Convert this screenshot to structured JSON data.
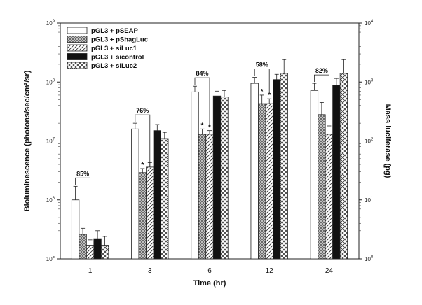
{
  "chart_data": {
    "type": "bar",
    "title": "",
    "xlabel": "Time (hr)",
    "ylabel": "Bioluminescence (photons/sec/cm²/sr)",
    "ylabel_right": "Mass luciferase (pg)",
    "yscale": "log",
    "ylim": [
      100000,
      1000000000
    ],
    "ylim_right": [
      1,
      10000
    ],
    "y_ticks": [
      {
        "value": 100000,
        "base": "10",
        "exp": "5"
      },
      {
        "value": 1000000,
        "base": "10",
        "exp": "6"
      },
      {
        "value": 10000000,
        "base": "10",
        "exp": "7"
      },
      {
        "value": 100000000,
        "base": "10",
        "exp": "8"
      },
      {
        "value": 1000000000,
        "base": "10",
        "exp": "9"
      }
    ],
    "y_ticks_right": [
      {
        "value": 1,
        "base": "10",
        "exp": "0"
      },
      {
        "value": 10,
        "base": "10",
        "exp": "1"
      },
      {
        "value": 100,
        "base": "10",
        "exp": "2"
      },
      {
        "value": 1000,
        "base": "10",
        "exp": "3"
      },
      {
        "value": 10000,
        "base": "10",
        "exp": "4"
      }
    ],
    "categories": [
      "1",
      "3",
      "6",
      "12",
      "24"
    ],
    "legend_position": "top-left",
    "series": [
      {
        "name": "pGL3 + pSEAP",
        "pattern": "white",
        "values": [
          1000000,
          16000000,
          68000000,
          95000000,
          72000000
        ],
        "errors": [
          1700000,
          20000000,
          85000000,
          120000000,
          95000000
        ]
      },
      {
        "name": "pGL3 + pShagLuc",
        "pattern": "crosshatch",
        "values": [
          260000,
          2900000,
          13000000,
          43000000,
          28000000
        ],
        "errors": [
          330000,
          3400000,
          16000000,
          60000000,
          45000000
        ]
      },
      {
        "name": "pGL3 + siLuc1",
        "pattern": "diagonal",
        "values": [
          170000,
          3600000,
          13000000,
          43000000,
          13000000
        ],
        "errors": [
          210000,
          4300000,
          15000000,
          52000000,
          18000000
        ]
      },
      {
        "name": "pGL3 + sicontrol",
        "pattern": "black",
        "values": [
          220000,
          15000000,
          58000000,
          110000000,
          88000000
        ],
        "errors": [
          300000,
          19000000,
          70000000,
          135000000,
          115000000
        ]
      },
      {
        "name": "pGL3 + siLuc2",
        "pattern": "checker",
        "values": [
          170000,
          11000000,
          56000000,
          140000000,
          140000000
        ],
        "errors": [
          240000,
          14000000,
          72000000,
          240000000,
          240000000
        ]
      }
    ],
    "annotations": [
      {
        "category": "1",
        "label": "85%"
      },
      {
        "category": "3",
        "label": "76%"
      },
      {
        "category": "6",
        "label": "84%"
      },
      {
        "category": "12",
        "label": "58%"
      },
      {
        "category": "24",
        "label": "82%"
      }
    ],
    "significance": [
      {
        "category": "3",
        "series": [
          1
        ],
        "label": "*"
      },
      {
        "category": "6",
        "series": [
          1,
          2
        ],
        "label": "*"
      },
      {
        "category": "12",
        "series": [
          1,
          2
        ],
        "label": "*"
      }
    ],
    "colors": {
      "bar_stroke": "#222222",
      "background": "#ffffff",
      "axis": "#222222"
    }
  }
}
